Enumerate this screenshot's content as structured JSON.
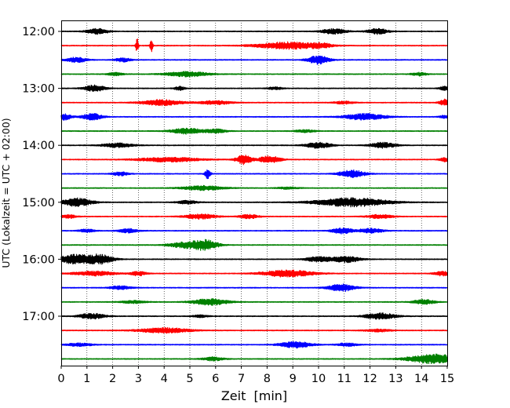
{
  "chart_data": {
    "type": "line",
    "xlabel": "Zeit  [min]",
    "ylabel": "UTC (Lokalzeit = UTC + 02:00)",
    "xlim": [
      0,
      15
    ],
    "x_ticks": [
      0,
      1,
      2,
      3,
      4,
      5,
      6,
      7,
      8,
      9,
      10,
      11,
      12,
      13,
      14,
      15
    ],
    "grid": "vertical-dotted",
    "trace_interval_minutes": 15,
    "hour_labels": [
      {
        "label": "12:00",
        "trace": 0
      },
      {
        "label": "13:00",
        "trace": 4
      },
      {
        "label": "14:00",
        "trace": 8
      },
      {
        "label": "15:00",
        "trace": 12
      },
      {
        "label": "16:00",
        "trace": 16
      },
      {
        "label": "17:00",
        "trace": 20
      }
    ],
    "series_colors": [
      "#000000",
      "#ff0000",
      "#0000ff",
      "#008000"
    ],
    "traces": [
      {
        "start": "12:00",
        "events": [
          {
            "t": 1.4,
            "amp": 0.9,
            "dur": 0.4
          },
          {
            "t": 10.6,
            "amp": 0.8,
            "dur": 0.5
          },
          {
            "t": 12.3,
            "amp": 0.9,
            "dur": 0.4
          }
        ]
      },
      {
        "start": "12:15",
        "events": [
          {
            "t": 2.95,
            "amp": 2.5,
            "dur": 0.05
          },
          {
            "t": 3.5,
            "amp": 2.8,
            "dur": 0.05
          },
          {
            "t": 8.8,
            "amp": 1.1,
            "dur": 1.2
          },
          {
            "t": 10.1,
            "amp": 0.6,
            "dur": 0.4
          }
        ]
      },
      {
        "start": "12:30",
        "events": [
          {
            "t": 0.6,
            "amp": 0.8,
            "dur": 0.4
          },
          {
            "t": 2.4,
            "amp": 0.6,
            "dur": 0.3
          },
          {
            "t": 10.0,
            "amp": 1.4,
            "dur": 0.4
          }
        ]
      },
      {
        "start": "12:45",
        "events": [
          {
            "t": 2.1,
            "amp": 0.5,
            "dur": 0.3
          },
          {
            "t": 4.9,
            "amp": 0.8,
            "dur": 0.8
          },
          {
            "t": 13.9,
            "amp": 0.5,
            "dur": 0.3
          }
        ]
      },
      {
        "start": "13:00",
        "events": [
          {
            "t": 1.3,
            "amp": 1.0,
            "dur": 0.4
          },
          {
            "t": 4.6,
            "amp": 0.6,
            "dur": 0.2
          },
          {
            "t": 8.3,
            "amp": 0.4,
            "dur": 0.3
          },
          {
            "t": 14.9,
            "amp": 0.6,
            "dur": 0.2
          }
        ]
      },
      {
        "start": "13:15",
        "events": [
          {
            "t": 3.9,
            "amp": 0.9,
            "dur": 0.8
          },
          {
            "t": 6.0,
            "amp": 0.6,
            "dur": 0.6
          },
          {
            "t": 11.0,
            "amp": 0.4,
            "dur": 0.4
          },
          {
            "t": 14.9,
            "amp": 1.0,
            "dur": 0.2
          }
        ]
      },
      {
        "start": "13:30",
        "events": [
          {
            "t": 0.1,
            "amp": 1.0,
            "dur": 0.3
          },
          {
            "t": 1.2,
            "amp": 1.0,
            "dur": 0.4
          },
          {
            "t": 11.8,
            "amp": 1.0,
            "dur": 0.8
          },
          {
            "t": 14.9,
            "amp": 0.5,
            "dur": 0.2
          }
        ]
      },
      {
        "start": "13:45",
        "events": [
          {
            "t": 4.9,
            "amp": 0.9,
            "dur": 0.6
          },
          {
            "t": 6.0,
            "amp": 0.6,
            "dur": 0.4
          },
          {
            "t": 9.5,
            "amp": 0.4,
            "dur": 0.4
          }
        ]
      },
      {
        "start": "14:00",
        "events": [
          {
            "t": 2.2,
            "amp": 0.7,
            "dur": 0.6
          },
          {
            "t": 10.0,
            "amp": 0.9,
            "dur": 0.5
          },
          {
            "t": 12.5,
            "amp": 0.9,
            "dur": 0.5
          }
        ]
      },
      {
        "start": "14:15",
        "events": [
          {
            "t": 4.2,
            "amp": 0.7,
            "dur": 1.2
          },
          {
            "t": 7.1,
            "amp": 1.5,
            "dur": 0.3
          },
          {
            "t": 8.1,
            "amp": 1.2,
            "dur": 0.4
          },
          {
            "t": 14.9,
            "amp": 0.6,
            "dur": 0.2
          }
        ]
      },
      {
        "start": "14:30",
        "events": [
          {
            "t": 2.3,
            "amp": 0.6,
            "dur": 0.3
          },
          {
            "t": 5.7,
            "amp": 1.8,
            "dur": 0.1
          },
          {
            "t": 11.3,
            "amp": 1.2,
            "dur": 0.5
          }
        ]
      },
      {
        "start": "14:45",
        "events": [
          {
            "t": 5.5,
            "amp": 0.7,
            "dur": 0.8
          },
          {
            "t": 8.8,
            "amp": 0.3,
            "dur": 0.4
          }
        ]
      },
      {
        "start": "15:00",
        "events": [
          {
            "t": 0.6,
            "amp": 1.3,
            "dur": 0.6
          },
          {
            "t": 4.9,
            "amp": 0.5,
            "dur": 0.4
          },
          {
            "t": 11.3,
            "amp": 1.4,
            "dur": 1.4
          }
        ]
      },
      {
        "start": "15:15",
        "events": [
          {
            "t": 0.3,
            "amp": 0.5,
            "dur": 0.3
          },
          {
            "t": 5.4,
            "amp": 0.8,
            "dur": 0.6
          },
          {
            "t": 7.3,
            "amp": 0.6,
            "dur": 0.4
          },
          {
            "t": 12.4,
            "amp": 0.6,
            "dur": 0.5
          }
        ]
      },
      {
        "start": "15:30",
        "events": [
          {
            "t": 1.0,
            "amp": 0.5,
            "dur": 0.3
          },
          {
            "t": 2.6,
            "amp": 0.6,
            "dur": 0.4
          },
          {
            "t": 10.9,
            "amp": 0.9,
            "dur": 0.4
          },
          {
            "t": 12.0,
            "amp": 0.7,
            "dur": 0.5
          }
        ]
      },
      {
        "start": "15:45",
        "events": [
          {
            "t": 4.8,
            "amp": 0.9,
            "dur": 0.6
          },
          {
            "t": 5.6,
            "amp": 1.5,
            "dur": 0.5
          }
        ]
      },
      {
        "start": "16:00",
        "events": [
          {
            "t": 0.5,
            "amp": 1.5,
            "dur": 0.6
          },
          {
            "t": 1.5,
            "amp": 1.5,
            "dur": 0.5
          },
          {
            "t": 10.0,
            "amp": 0.8,
            "dur": 0.5
          },
          {
            "t": 11.1,
            "amp": 1.0,
            "dur": 0.5
          }
        ]
      },
      {
        "start": "16:15",
        "events": [
          {
            "t": 1.3,
            "amp": 0.7,
            "dur": 0.8
          },
          {
            "t": 3.0,
            "amp": 0.7,
            "dur": 0.3
          },
          {
            "t": 8.8,
            "amp": 1.1,
            "dur": 1.0
          },
          {
            "t": 14.8,
            "amp": 0.7,
            "dur": 0.3
          }
        ]
      },
      {
        "start": "16:30",
        "events": [
          {
            "t": 2.3,
            "amp": 0.6,
            "dur": 0.4
          },
          {
            "t": 10.9,
            "amp": 1.2,
            "dur": 0.5
          }
        ]
      },
      {
        "start": "16:45",
        "events": [
          {
            "t": 2.8,
            "amp": 0.4,
            "dur": 0.5
          },
          {
            "t": 5.8,
            "amp": 1.0,
            "dur": 0.7
          },
          {
            "t": 14.1,
            "amp": 0.8,
            "dur": 0.4
          }
        ]
      },
      {
        "start": "17:00",
        "events": [
          {
            "t": 1.2,
            "amp": 0.9,
            "dur": 0.5
          },
          {
            "t": 5.4,
            "amp": 0.4,
            "dur": 0.3
          },
          {
            "t": 12.4,
            "amp": 1.0,
            "dur": 0.6
          }
        ]
      },
      {
        "start": "17:15",
        "events": [
          {
            "t": 4.0,
            "amp": 0.8,
            "dur": 1.0
          },
          {
            "t": 12.3,
            "amp": 0.4,
            "dur": 0.5
          }
        ]
      },
      {
        "start": "17:30",
        "events": [
          {
            "t": 0.7,
            "amp": 0.5,
            "dur": 0.5
          },
          {
            "t": 9.1,
            "amp": 1.0,
            "dur": 0.6
          },
          {
            "t": 11.1,
            "amp": 0.5,
            "dur": 0.4
          }
        ]
      },
      {
        "start": "17:45",
        "events": [
          {
            "t": 5.9,
            "amp": 0.6,
            "dur": 0.4
          },
          {
            "t": 14.5,
            "amp": 1.5,
            "dur": 1.0
          }
        ]
      }
    ]
  }
}
